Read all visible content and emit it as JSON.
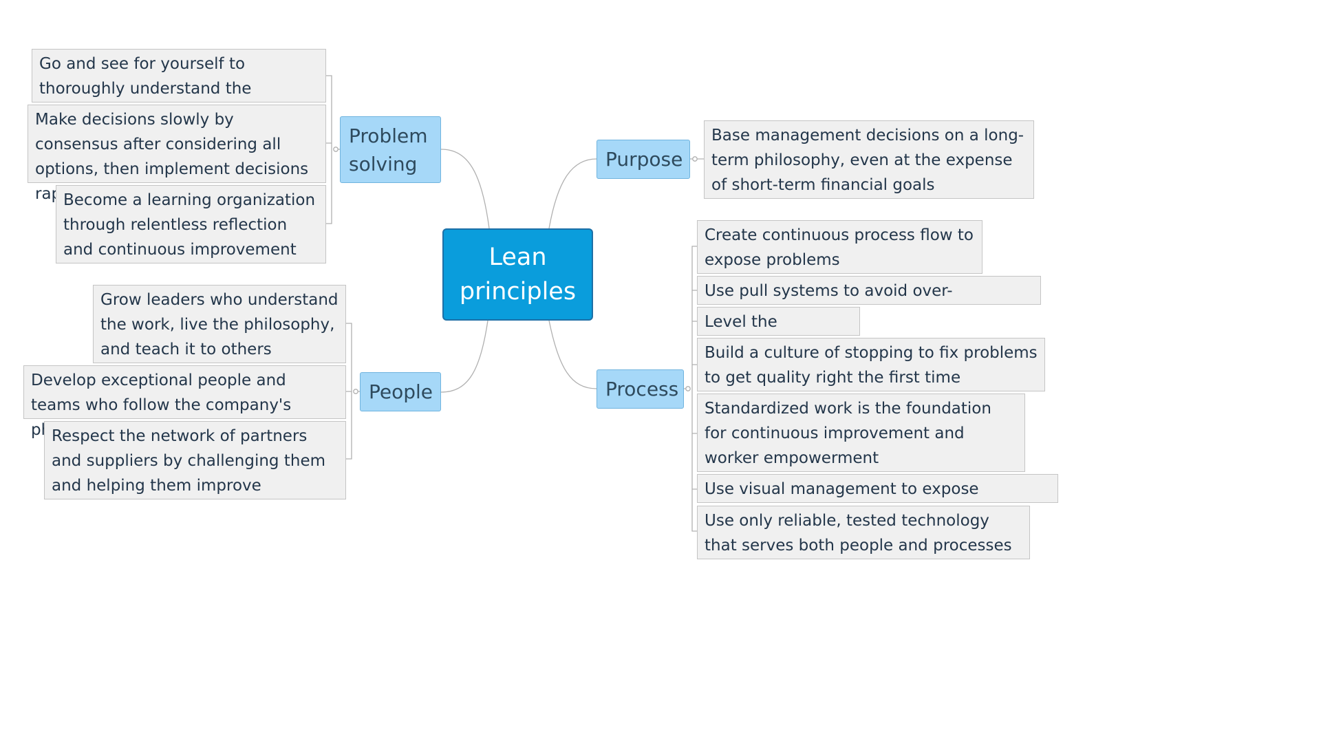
{
  "central": {
    "label": "Lean principles"
  },
  "branches": {
    "problem_solving": {
      "label": "Problem solving",
      "items": [
        "Go and see for yourself to thoroughly understand the situation",
        "Make decisions slowly by consensus after considering all options, then implement decisions rapidly",
        "Become a learning organization through relentless reflection and continuous improvement"
      ]
    },
    "people": {
      "label": "People",
      "items": [
        "Grow leaders who understand the work, live the philosophy, and teach it to others",
        "Develop exceptional people and teams who follow the company's philisophy",
        "Respect the network of partners and suppliers by challenging them and helping them improve"
      ]
    },
    "purpose": {
      "label": "Purpose",
      "items": [
        "Base management decisions on a long-term philosophy, even at the expense of short-term financial goals"
      ]
    },
    "process": {
      "label": "Process",
      "items": [
        "Create continuous process flow to expose problems",
        "Use pull systems to avoid over-production",
        "Level the workload",
        "Build a culture of stopping to fix problems to get quality right the first time",
        "Standardized work is the foundation for continuous improvement and worker empowerment",
        "Use visual management to expose problems",
        "Use only reliable, tested technology that serves both people and processes"
      ]
    }
  },
  "colors": {
    "central_fill": "#0a9ddc",
    "topic_fill": "#a6d8f8",
    "subtopic_fill": "#f0f0f0",
    "connector": "#b0b0b0"
  }
}
